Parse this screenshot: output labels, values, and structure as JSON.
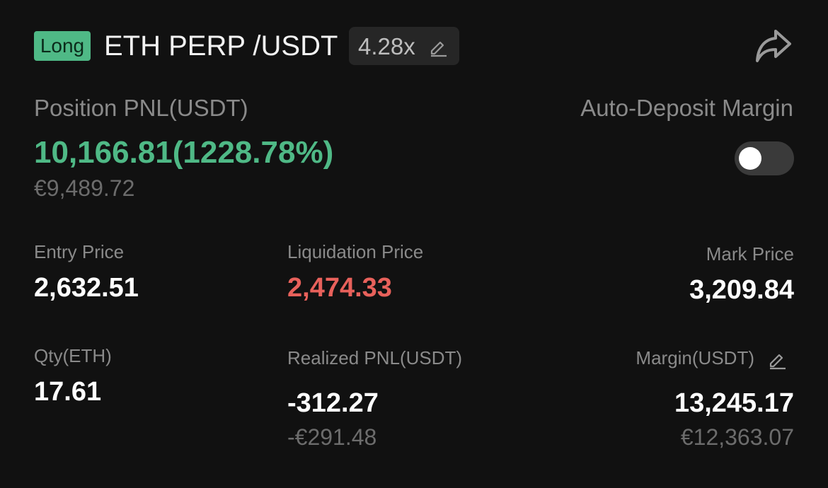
{
  "header": {
    "side_badge": "Long",
    "pair": "ETH PERP /USDT",
    "leverage": "4.28x",
    "icons": {
      "leverage_edit": "pencil-edit-icon",
      "share": "share-arrow-icon"
    }
  },
  "pnl": {
    "label": "Position PNL(USDT)",
    "value": "10,166.81(1228.78%)",
    "eur": "€9,489.72"
  },
  "auto_deposit": {
    "label": "Auto-Deposit Margin",
    "enabled": false
  },
  "stats": {
    "entry_price": {
      "label": "Entry Price",
      "value": "2,632.51"
    },
    "liquidation_price": {
      "label": "Liquidation Price",
      "value": "2,474.33"
    },
    "mark_price": {
      "label": "Mark Price",
      "value": "3,209.84"
    },
    "qty": {
      "label": "Qty(ETH)",
      "value": "17.61"
    },
    "realized_pnl": {
      "label": "Realized PNL(USDT)",
      "value": "-312.27",
      "eur": "-€291.48"
    },
    "margin": {
      "label": "Margin(USDT)",
      "value": "13,245.17",
      "eur": "€12,363.07"
    }
  },
  "colors": {
    "background": "#111111",
    "profit_green": "#4fb986",
    "liquidation_red": "#e8615b",
    "label_gray": "#8a8a8a",
    "secondary_gray": "#6c6c6c"
  }
}
